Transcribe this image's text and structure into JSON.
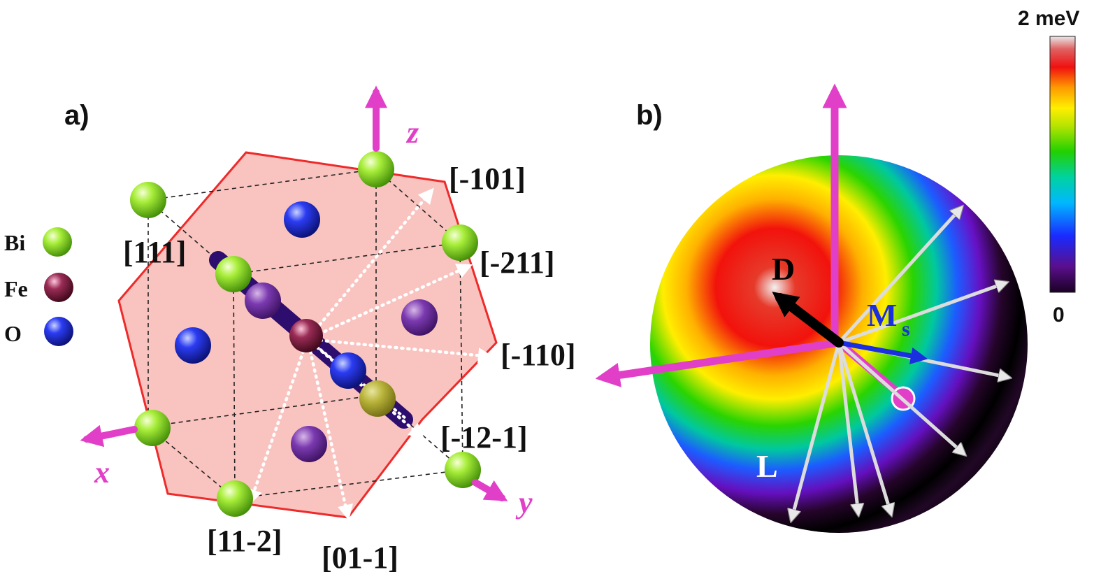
{
  "panel_a": {
    "label": "a)",
    "axes": {
      "x": "x",
      "y": "y",
      "z": "z"
    },
    "legend": [
      {
        "symbol": "Bi",
        "color": "#8fe12a"
      },
      {
        "symbol": "Fe",
        "color": "#7a1b3c"
      },
      {
        "symbol": "O",
        "color": "#1e2fd6"
      }
    ],
    "directions": {
      "d111": "[111]",
      "dm101": "[-101]",
      "dm211": "[-211]",
      "dm110": "[-110]",
      "dm12m1": "[-12-1]",
      "d11m2": "[11-2]",
      "d01m1": "[01-1]"
    },
    "plane_color": "#f8b8b4"
  },
  "panel_b": {
    "label": "b)",
    "vectors": {
      "D": "D",
      "Ms": "M",
      "Ms_sub": "s",
      "L": "L"
    },
    "colorbar": {
      "max": "2 meV",
      "min": "0"
    },
    "colors": {
      "axis": "#e23fc8",
      "D": "#000000",
      "Ms": "#1a2fe0",
      "L": "#ffffff"
    }
  }
}
